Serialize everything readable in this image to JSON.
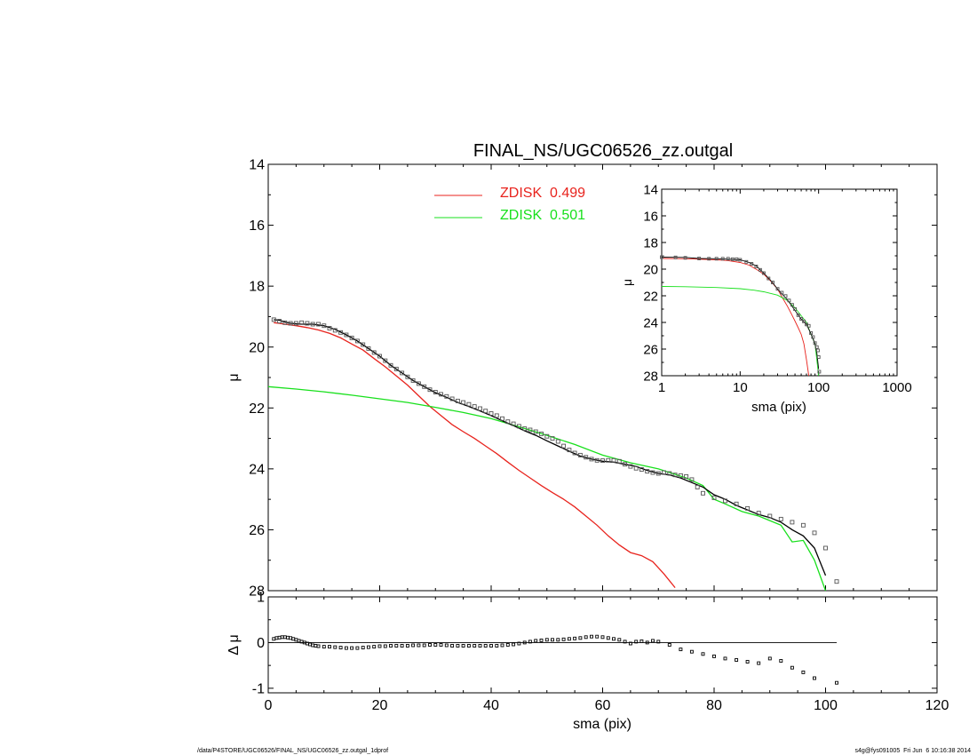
{
  "page": {
    "footer_left": "/data/P4STORE/UGC06526/FINAL_NS/UGC06526_zz.outgal_1dprof",
    "footer_right": "s4g@fys091005  Fri Jun  6 10:16:38 2014"
  },
  "chart_data": [
    {
      "id": "main",
      "type": "scatter",
      "title": "FINAL_NS/UGC06526_zz.outgal",
      "xlabel": "",
      "ylabel": "μ",
      "xlim": [
        0,
        120
      ],
      "ylim": [
        28,
        14
      ],
      "y_inverted": true,
      "yticks": [
        14,
        16,
        18,
        20,
        22,
        24,
        26,
        28
      ],
      "xticks": [
        0,
        20,
        40,
        60,
        80,
        100,
        120
      ],
      "x_ticklabels_shown": false,
      "legend_position": "top-center",
      "series": [
        {
          "name": "ZDISK  0.499",
          "kind": "line",
          "color": "#e8231d",
          "x": [
            1,
            2,
            3,
            5,
            7,
            9,
            11,
            13,
            15,
            17,
            19,
            21,
            23,
            25,
            27,
            29,
            31,
            33,
            35,
            37,
            39,
            41,
            43,
            45,
            47,
            49,
            51,
            53,
            55,
            57,
            59,
            61,
            63,
            65,
            67,
            69,
            71,
            73
          ],
          "y": [
            19.2,
            19.22,
            19.25,
            19.3,
            19.36,
            19.44,
            19.55,
            19.7,
            19.9,
            20.1,
            20.38,
            20.65,
            20.95,
            21.25,
            21.6,
            21.95,
            22.25,
            22.55,
            22.78,
            23.0,
            23.25,
            23.5,
            23.78,
            24.05,
            24.3,
            24.55,
            24.78,
            25.0,
            25.25,
            25.55,
            25.85,
            26.2,
            26.5,
            26.75,
            26.85,
            27.05,
            27.45,
            27.9
          ]
        },
        {
          "name": "ZDISK  0.501",
          "kind": "line",
          "color": "#18e01c",
          "x": [
            0,
            5,
            10,
            15,
            20,
            25,
            30,
            35,
            40,
            45,
            50,
            55,
            60,
            65,
            68,
            70,
            75,
            78,
            80,
            82,
            85,
            88,
            90,
            92,
            94,
            96,
            98,
            100
          ],
          "y": [
            21.3,
            21.38,
            21.47,
            21.58,
            21.7,
            21.82,
            21.98,
            22.15,
            22.35,
            22.62,
            22.9,
            23.2,
            23.55,
            23.8,
            23.92,
            24.0,
            24.3,
            24.55,
            25.0,
            25.15,
            25.4,
            25.55,
            25.7,
            25.85,
            26.4,
            26.35,
            27.0,
            28.0
          ]
        },
        {
          "name": "",
          "kind": "line",
          "color": "#000000",
          "x": [
            1,
            2,
            3,
            4,
            6,
            8,
            10,
            12,
            14,
            16,
            18,
            20,
            22,
            24,
            26,
            28,
            30,
            32,
            34,
            36,
            38,
            40,
            42,
            44,
            46,
            48,
            50,
            52,
            54,
            56,
            58,
            60,
            62,
            64,
            66,
            68,
            70,
            72,
            74,
            76,
            78,
            80,
            82,
            84,
            86,
            88,
            90,
            92,
            94,
            96,
            98,
            100
          ],
          "y": [
            19.1,
            19.12,
            19.18,
            19.22,
            19.25,
            19.25,
            19.3,
            19.42,
            19.6,
            19.8,
            20.05,
            20.3,
            20.6,
            20.85,
            21.1,
            21.3,
            21.5,
            21.65,
            21.82,
            21.95,
            22.1,
            22.25,
            22.42,
            22.58,
            22.75,
            22.9,
            23.08,
            23.25,
            23.42,
            23.58,
            23.68,
            23.75,
            23.78,
            23.85,
            23.92,
            24.05,
            24.15,
            24.2,
            24.3,
            24.45,
            24.6,
            24.85,
            25.0,
            25.2,
            25.35,
            25.5,
            25.6,
            25.75,
            26.0,
            26.2,
            26.6,
            27.5
          ]
        },
        {
          "name": "",
          "kind": "points",
          "color": "#555555",
          "x": [
            1,
            2,
            3,
            4,
            5,
            6,
            7,
            8,
            9,
            10,
            11,
            12,
            13,
            14,
            15,
            16,
            17,
            18,
            19,
            20,
            21,
            22,
            23,
            24,
            25,
            26,
            27,
            28,
            29,
            30,
            31,
            32,
            33,
            34,
            35,
            36,
            37,
            38,
            39,
            40,
            41,
            42,
            43,
            44,
            45,
            46,
            47,
            48,
            49,
            50,
            51,
            52,
            53,
            54,
            55,
            56,
            57,
            58,
            59,
            60,
            61,
            62,
            63,
            64,
            65,
            66,
            67,
            68,
            69,
            70,
            71,
            72,
            73,
            74,
            75,
            76,
            77,
            78,
            80,
            82,
            84,
            86,
            88,
            90,
            92,
            94,
            96,
            98,
            100,
            102
          ],
          "y": [
            19.1,
            19.15,
            19.2,
            19.22,
            19.22,
            19.2,
            19.22,
            19.25,
            19.25,
            19.3,
            19.38,
            19.45,
            19.52,
            19.6,
            19.7,
            19.8,
            19.92,
            20.05,
            20.18,
            20.3,
            20.45,
            20.6,
            20.72,
            20.85,
            20.98,
            21.1,
            21.2,
            21.3,
            21.4,
            21.48,
            21.55,
            21.62,
            21.7,
            21.77,
            21.82,
            21.88,
            21.95,
            22.02,
            22.1,
            22.18,
            22.25,
            22.35,
            22.45,
            22.52,
            22.6,
            22.68,
            22.72,
            22.78,
            22.85,
            22.93,
            23.0,
            23.1,
            23.25,
            23.38,
            23.48,
            23.55,
            23.62,
            23.68,
            23.72,
            23.73,
            23.72,
            23.72,
            23.75,
            23.85,
            23.92,
            23.98,
            24.02,
            24.08,
            24.12,
            24.15,
            24.12,
            24.15,
            24.2,
            24.22,
            24.25,
            24.35,
            24.6,
            24.8,
            24.95,
            25.05,
            25.15,
            25.3,
            25.45,
            25.55,
            25.65,
            25.75,
            25.85,
            26.1,
            26.6,
            27.7
          ]
        }
      ]
    },
    {
      "id": "inset",
      "type": "scatter",
      "title": "",
      "xlabel": "sma (pix)",
      "ylabel": "μ",
      "x_scale": "log",
      "xlim": [
        1,
        1000
      ],
      "ylim": [
        28,
        14
      ],
      "y_inverted": true,
      "yticks": [
        14,
        16,
        18,
        20,
        22,
        24,
        26,
        28
      ],
      "xticks": [
        1,
        10,
        100,
        1000
      ],
      "series": [
        {
          "name": "ZDISK  0.499",
          "kind": "line",
          "color": "#e8231d",
          "x": [
            1,
            2,
            3,
            5,
            7,
            10,
            13,
            17,
            20,
            25,
            30,
            35,
            40,
            45,
            50,
            55,
            60,
            65,
            70,
            75
          ],
          "y": [
            19.2,
            19.22,
            19.25,
            19.3,
            19.36,
            19.5,
            19.7,
            20.1,
            20.38,
            20.95,
            21.5,
            22.2,
            22.78,
            23.35,
            23.9,
            24.4,
            24.9,
            25.6,
            26.8,
            28.0
          ]
        },
        {
          "name": "ZDISK  0.501",
          "kind": "line",
          "color": "#18e01c",
          "x": [
            1,
            2,
            5,
            10,
            15,
            20,
            30,
            40,
            50,
            60,
            70,
            80,
            90,
            100
          ],
          "y": [
            21.3,
            21.32,
            21.38,
            21.47,
            21.58,
            21.7,
            21.95,
            22.35,
            22.9,
            23.5,
            24.0,
            24.9,
            25.6,
            28.0
          ]
        },
        {
          "name": "",
          "kind": "line",
          "color": "#000000",
          "x": [
            1,
            2,
            3,
            5,
            7,
            10,
            13,
            16,
            20,
            25,
            30,
            40,
            50,
            60,
            70,
            80,
            90,
            95,
            100
          ],
          "y": [
            19.1,
            19.12,
            19.2,
            19.22,
            19.25,
            19.3,
            19.5,
            19.75,
            20.3,
            20.9,
            21.5,
            22.3,
            23.1,
            23.75,
            24.15,
            24.85,
            25.6,
            26.3,
            27.5
          ]
        },
        {
          "name": "",
          "kind": "points",
          "color": "#555555",
          "x": [
            1,
            1.5,
            2,
            3,
            4,
            5,
            6,
            7,
            8,
            9,
            10,
            12,
            14,
            16,
            18,
            20,
            23,
            26,
            30,
            34,
            38,
            42,
            46,
            50,
            55,
            60,
            65,
            70,
            75,
            80,
            85,
            90,
            95,
            98,
            100,
            102
          ],
          "y": [
            19.1,
            19.12,
            19.15,
            19.2,
            19.22,
            19.22,
            19.22,
            19.22,
            19.25,
            19.25,
            19.3,
            19.45,
            19.6,
            19.8,
            20.05,
            20.3,
            20.7,
            21.0,
            21.48,
            21.77,
            22.02,
            22.35,
            22.68,
            23.0,
            23.45,
            23.73,
            23.92,
            24.15,
            24.25,
            24.8,
            25.1,
            25.55,
            25.85,
            26.1,
            26.6,
            27.7
          ]
        }
      ]
    },
    {
      "id": "residual",
      "type": "scatter",
      "title": "",
      "xlabel": "sma (pix)",
      "ylabel": "Δ μ",
      "xlim": [
        0,
        120
      ],
      "ylim": [
        -1.1,
        1.0
      ],
      "yticks": [
        1,
        0,
        -1
      ],
      "xticks": [
        0,
        20,
        40,
        60,
        80,
        100,
        120
      ],
      "zero_line": true,
      "series": [
        {
          "name": "",
          "kind": "points",
          "color": "#000000",
          "x": [
            1,
            1.5,
            2,
            2.5,
            3,
            3.5,
            4,
            4.5,
            5,
            5.5,
            6,
            6.5,
            7,
            7.5,
            8,
            8.5,
            9,
            10,
            11,
            12,
            13,
            14,
            15,
            16,
            17,
            18,
            19,
            20,
            21,
            22,
            23,
            24,
            25,
            26,
            27,
            28,
            29,
            30,
            31,
            32,
            33,
            34,
            35,
            36,
            37,
            38,
            39,
            40,
            41,
            42,
            43,
            44,
            45,
            46,
            47,
            48,
            49,
            50,
            51,
            52,
            53,
            54,
            55,
            56,
            57,
            58,
            59,
            60,
            61,
            62,
            63,
            64,
            65,
            66,
            67,
            68,
            69,
            70,
            72,
            74,
            76,
            78,
            80,
            82,
            84,
            86,
            88,
            90,
            92,
            94,
            96,
            98,
            102
          ],
          "y": [
            0.08,
            0.1,
            0.11,
            0.12,
            0.12,
            0.11,
            0.1,
            0.08,
            0.06,
            0.04,
            0.02,
            0.0,
            -0.02,
            -0.04,
            -0.06,
            -0.07,
            -0.08,
            -0.09,
            -0.09,
            -0.1,
            -0.11,
            -0.12,
            -0.12,
            -0.12,
            -0.11,
            -0.1,
            -0.09,
            -0.08,
            -0.08,
            -0.07,
            -0.07,
            -0.07,
            -0.07,
            -0.06,
            -0.06,
            -0.06,
            -0.05,
            -0.05,
            -0.05,
            -0.06,
            -0.07,
            -0.07,
            -0.07,
            -0.07,
            -0.07,
            -0.07,
            -0.07,
            -0.07,
            -0.07,
            -0.06,
            -0.05,
            -0.04,
            -0.02,
            0.0,
            0.02,
            0.04,
            0.05,
            0.06,
            0.06,
            0.06,
            0.07,
            0.08,
            0.09,
            0.1,
            0.12,
            0.13,
            0.13,
            0.12,
            0.1,
            0.08,
            0.06,
            0.02,
            -0.02,
            0.02,
            0.03,
            0.0,
            0.04,
            0.02,
            -0.05,
            -0.15,
            -0.2,
            -0.25,
            -0.3,
            -0.35,
            -0.38,
            -0.42,
            -0.45,
            -0.35,
            -0.4,
            -0.55,
            -0.65,
            -0.78,
            -0.88
          ]
        }
      ]
    }
  ]
}
